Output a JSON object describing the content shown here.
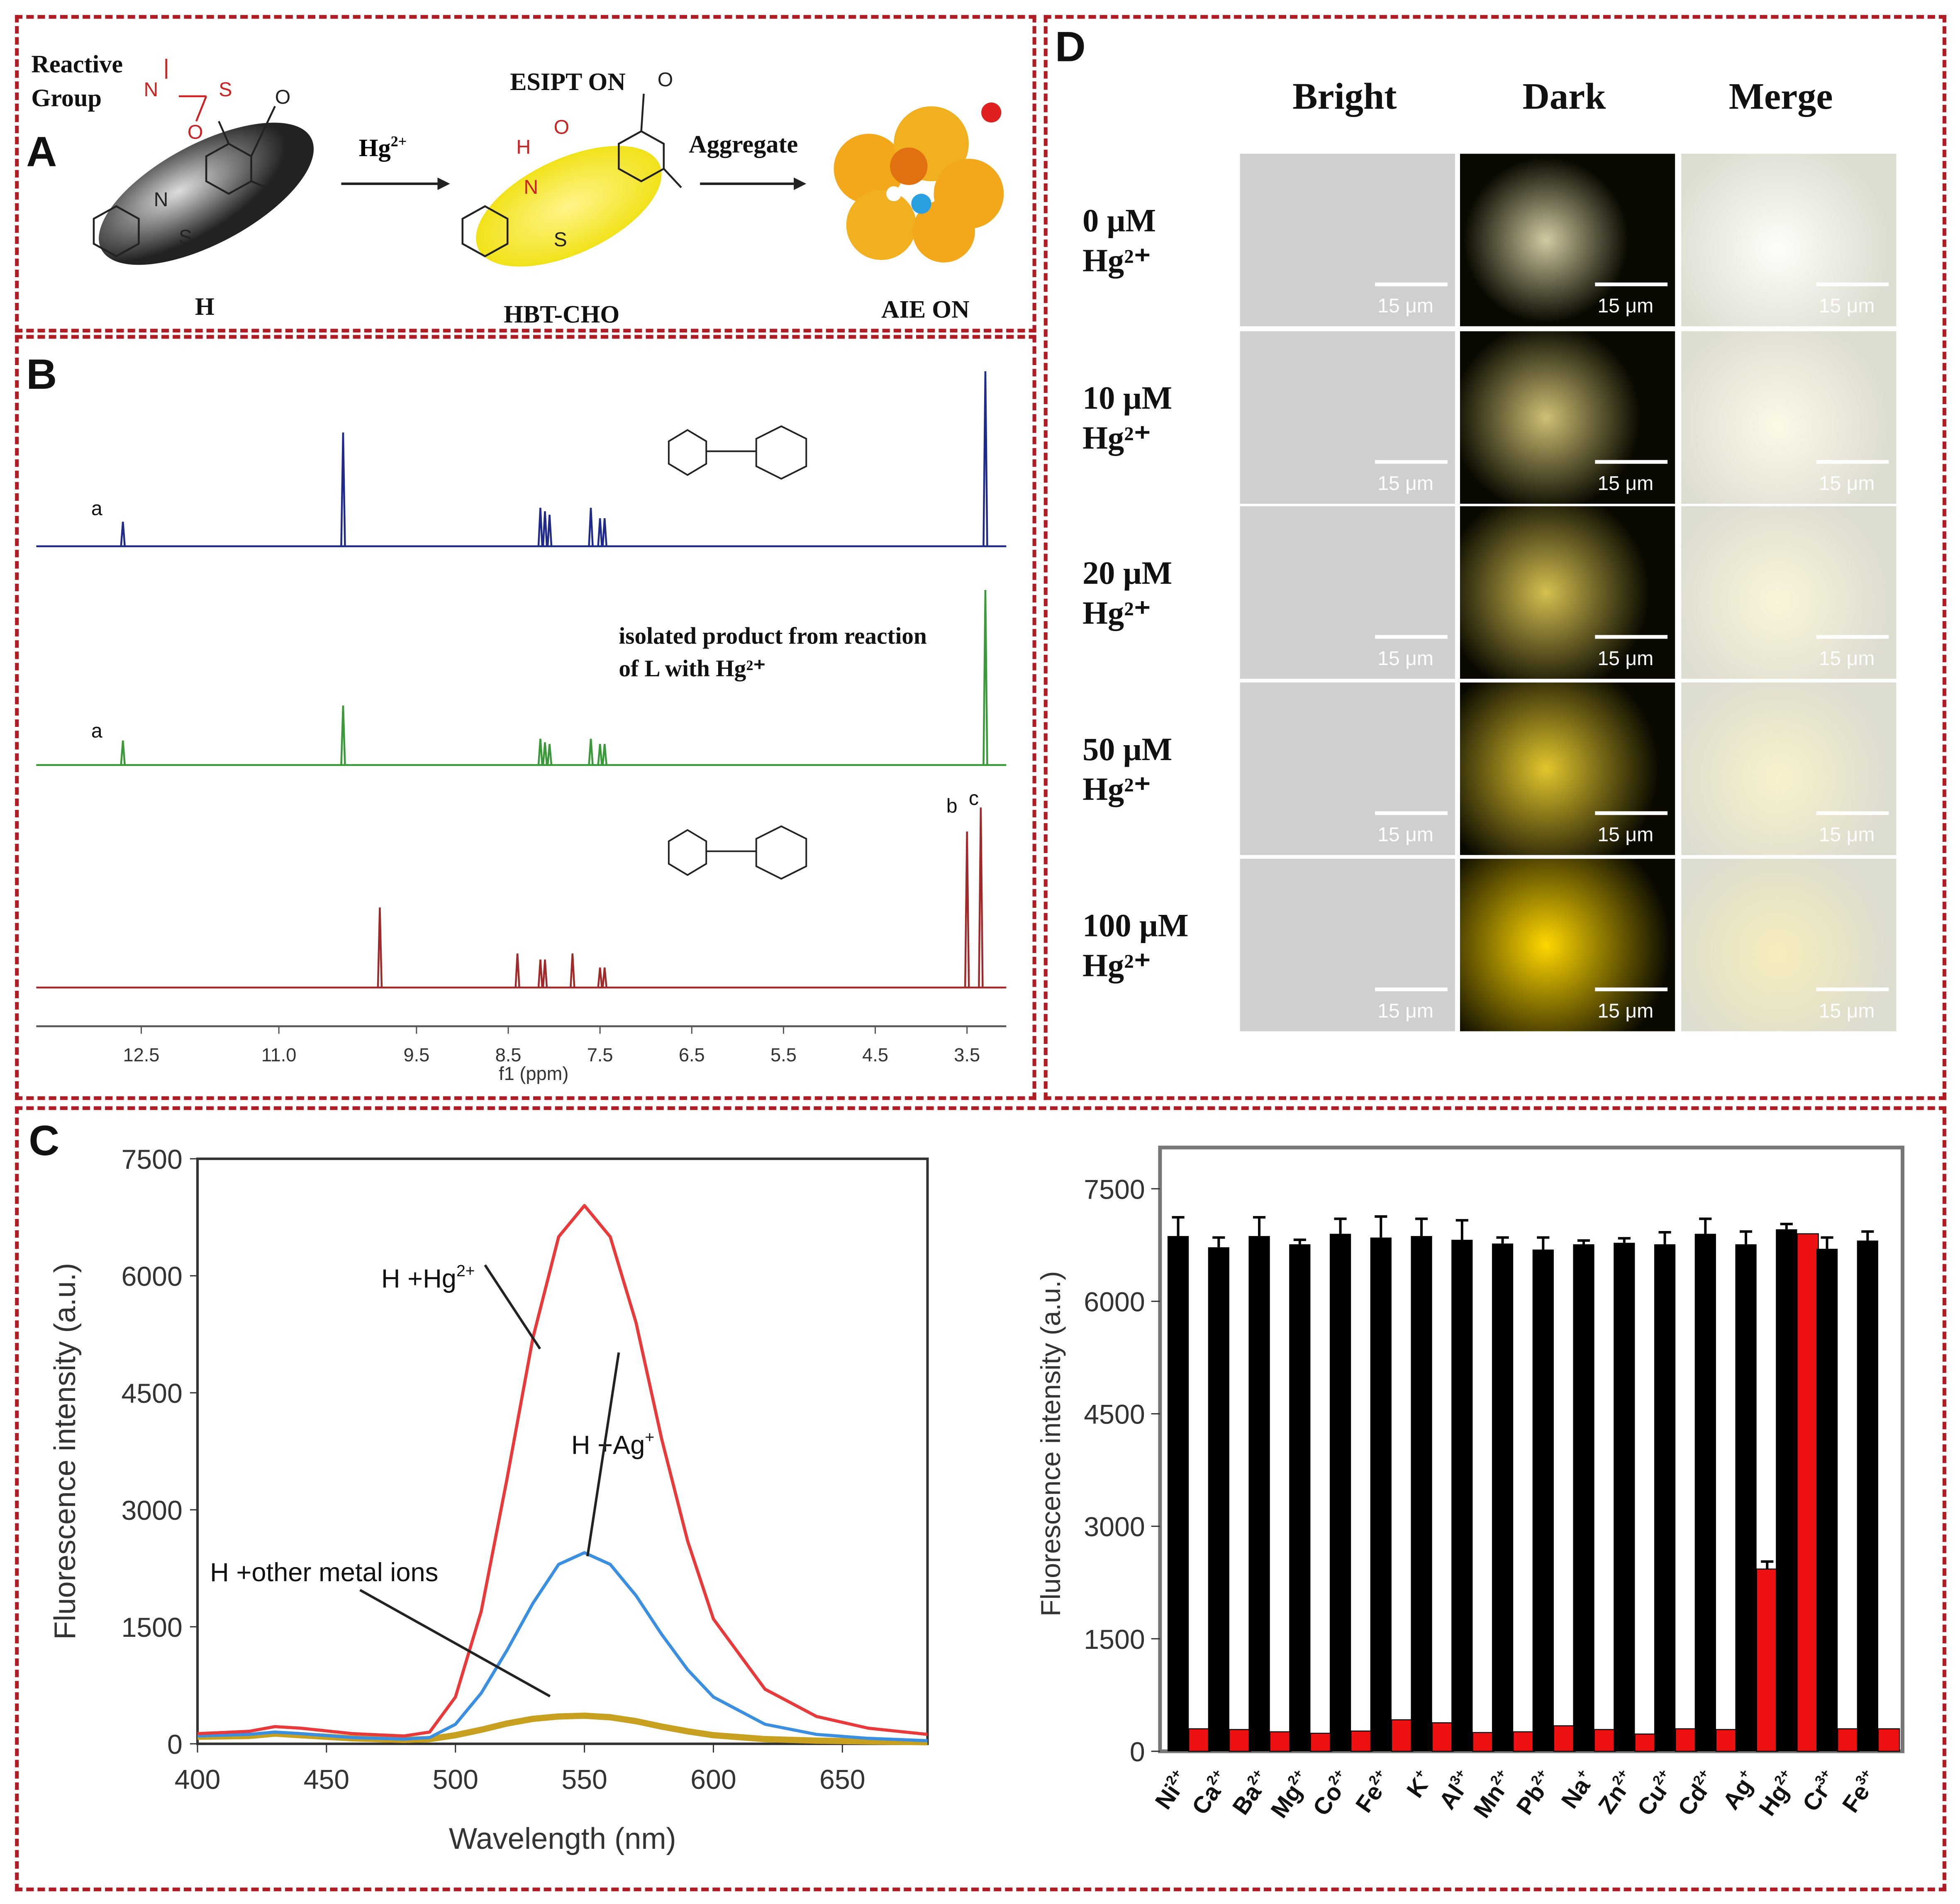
{
  "panel_labels": {
    "a": "A",
    "b": "B",
    "c": "C",
    "d": "D"
  },
  "panel_a": {
    "reactive_group": [
      "Reactive",
      "Group"
    ],
    "reagent_label": "Hg",
    "reagent_charge": "2+",
    "esipt_label": "ESIPT ON",
    "aggregate_label": "Aggregate",
    "compound_h": "H",
    "compound_hbt": "HBT-CHO",
    "aie_label": "AIE ON"
  },
  "panel_b": {
    "xlabel": "f1 (ppm)",
    "ticks": [
      "12.5",
      "11.0",
      "9.5",
      "8.5",
      "7.5",
      "6.5",
      "5.5",
      "4.5",
      "3.5"
    ],
    "tick_values": [
      12.5,
      11.0,
      9.5,
      8.5,
      7.5,
      6.5,
      5.5,
      4.5,
      3.5
    ],
    "annotation": [
      "isolated product from reaction",
      "of  L with Hg²⁺"
    ],
    "peak_label_a": "a",
    "peak_label_b": "b",
    "peak_label_c": "c",
    "colors": {
      "top": "#1f2a8a",
      "middle": "#3a9a3a",
      "bottom": "#a02a2a"
    },
    "spectra": [
      {
        "peaks": [
          [
            12.7,
            0.14
          ],
          [
            10.3,
            0.65
          ],
          [
            8.15,
            0.22
          ],
          [
            8.1,
            0.2
          ],
          [
            8.05,
            0.18
          ],
          [
            7.6,
            0.22
          ],
          [
            7.5,
            0.16
          ],
          [
            7.45,
            0.16
          ],
          [
            3.3,
            1.0
          ]
        ]
      },
      {
        "peaks": [
          [
            12.7,
            0.14
          ],
          [
            10.3,
            0.34
          ],
          [
            8.15,
            0.15
          ],
          [
            8.1,
            0.13
          ],
          [
            8.05,
            0.12
          ],
          [
            7.6,
            0.15
          ],
          [
            7.5,
            0.12
          ],
          [
            7.45,
            0.12
          ],
          [
            3.3,
            1.0
          ]
        ]
      },
      {
        "peaks": [
          [
            9.9,
            0.4
          ],
          [
            8.4,
            0.17
          ],
          [
            8.15,
            0.14
          ],
          [
            8.1,
            0.14
          ],
          [
            7.8,
            0.17
          ],
          [
            7.5,
            0.1
          ],
          [
            7.45,
            0.1
          ],
          [
            3.5,
            0.78
          ],
          [
            3.35,
            0.9
          ]
        ]
      }
    ]
  },
  "panel_d": {
    "columns": [
      "Bright",
      "Dark",
      "Merge"
    ],
    "rows": [
      {
        "conc": "0 μM",
        "ion": "Hg²⁺",
        "intensity": 0.1
      },
      {
        "conc": "10 μM",
        "ion": "Hg²⁺",
        "intensity": 0.35
      },
      {
        "conc": "20 μM",
        "ion": "Hg²⁺",
        "intensity": 0.55
      },
      {
        "conc": "50 μM",
        "ion": "Hg²⁺",
        "intensity": 0.75
      },
      {
        "conc": "100 μM",
        "ion": "Hg²⁺",
        "intensity": 1.0
      }
    ],
    "scale_bar": "15 μm"
  },
  "chart_data": [
    {
      "type": "line",
      "xlabel": "Wavelength (nm)",
      "ylabel": "Fluorescence intensity (a.u.)",
      "xlim": [
        400,
        683
      ],
      "ylim": [
        0,
        7500
      ],
      "xticks": [
        400,
        450,
        500,
        550,
        600,
        650
      ],
      "yticks": [
        0,
        1500,
        3000,
        4500,
        6000,
        7500
      ],
      "x": [
        400,
        420,
        430,
        440,
        460,
        480,
        490,
        500,
        510,
        520,
        530,
        540,
        550,
        560,
        570,
        580,
        590,
        600,
        620,
        640,
        660,
        683
      ],
      "series": [
        {
          "name": "H +Hg²⁺",
          "color": "#e8393b",
          "values": [
            130,
            160,
            220,
            200,
            130,
            100,
            150,
            600,
            1700,
            3400,
            5200,
            6500,
            6900,
            6500,
            5400,
            3900,
            2600,
            1600,
            700,
            350,
            200,
            120
          ]
        },
        {
          "name": "H +Ag⁺",
          "color": "#3b8fe0",
          "values": [
            100,
            120,
            150,
            130,
            80,
            60,
            80,
            250,
            650,
            1200,
            1800,
            2300,
            2450,
            2300,
            1900,
            1400,
            950,
            600,
            250,
            120,
            70,
            40
          ]
        },
        {
          "name": "H +other metal ions",
          "color": "#c8a020",
          "values": [
            90,
            100,
            130,
            110,
            70,
            50,
            60,
            110,
            180,
            260,
            320,
            350,
            360,
            340,
            290,
            220,
            160,
            110,
            60,
            40,
            30,
            20
          ]
        }
      ],
      "annotations": [
        {
          "text": "H +Hg",
          "sup": "2+"
        },
        {
          "text": "H +Ag",
          "sup": "+"
        },
        {
          "text": "H +other metal ions",
          "sup": ""
        }
      ]
    },
    {
      "type": "bar",
      "ylabel": "Fluorescence intensity (a.u.)",
      "ylim": [
        0,
        7500
      ],
      "yticks": [
        0,
        1500,
        3000,
        4500,
        6000,
        7500
      ],
      "categories": [
        {
          "el": "Ni",
          "ch": "2+"
        },
        {
          "el": "Ca",
          "ch": "2+"
        },
        {
          "el": "Ba",
          "ch": "2+"
        },
        {
          "el": "Mg",
          "ch": "2+"
        },
        {
          "el": "Co",
          "ch": "2+"
        },
        {
          "el": "Fe",
          "ch": "2+"
        },
        {
          "el": "K",
          "ch": "+"
        },
        {
          "el": "Al",
          "ch": "3+"
        },
        {
          "el": "Mn",
          "ch": "2+"
        },
        {
          "el": "Pb",
          "ch": "2+"
        },
        {
          "el": "Na",
          "ch": "+"
        },
        {
          "el": "Zn",
          "ch": "2+"
        },
        {
          "el": "Cu",
          "ch": "2+"
        },
        {
          "el": "Cd",
          "ch": "2+"
        },
        {
          "el": "Ag",
          "ch": "+"
        },
        {
          "el": "Hg",
          "ch": "2+"
        },
        {
          "el": "Cr",
          "ch": "3+"
        },
        {
          "el": "Fe",
          "ch": "3+"
        }
      ],
      "series": [
        {
          "color": "#000000",
          "values": [
            6870,
            6720,
            6870,
            6760,
            6900,
            6850,
            6870,
            6820,
            6770,
            6690,
            6760,
            6780,
            6760,
            6900,
            6760,
            6960,
            6700,
            6810
          ],
          "errors": [
            250,
            130,
            250,
            60,
            200,
            280,
            230,
            260,
            80,
            160,
            50,
            60,
            160,
            200,
            170,
            70,
            150,
            120
          ]
        },
        {
          "color": "#ee1111",
          "values": [
            300,
            290,
            260,
            240,
            270,
            420,
            380,
            250,
            260,
            340,
            290,
            230,
            300,
            290,
            2430,
            6900,
            300,
            300
          ],
          "errors": [
            0,
            0,
            0,
            0,
            0,
            0,
            0,
            0,
            0,
            0,
            0,
            0,
            0,
            0,
            100,
            0,
            0,
            0
          ]
        }
      ]
    }
  ]
}
